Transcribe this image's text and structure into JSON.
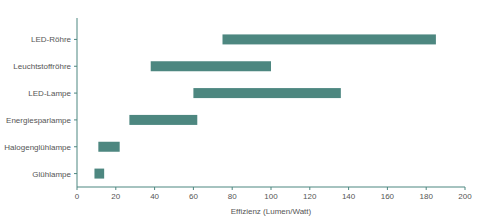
{
  "chart_data": {
    "type": "range_bar",
    "orientation": "horizontal",
    "xlabel": "Effizienz (Lumen/Watt)",
    "categories": [
      "LED-Röhre",
      "Leuchtstoffröhre",
      "LED-Lampe",
      "Energiesparlampe",
      "Halogenglühlampe",
      "Glühlampe"
    ],
    "values": [
      [
        75,
        185
      ],
      [
        38,
        100
      ],
      [
        60,
        136
      ],
      [
        27,
        62
      ],
      [
        11,
        22
      ],
      [
        9,
        14
      ]
    ],
    "color": "#4d8780",
    "xlim": [
      0,
      200
    ],
    "xticks": [
      0,
      20,
      40,
      60,
      80,
      100,
      120,
      140,
      160,
      180,
      200
    ],
    "grid": false
  }
}
